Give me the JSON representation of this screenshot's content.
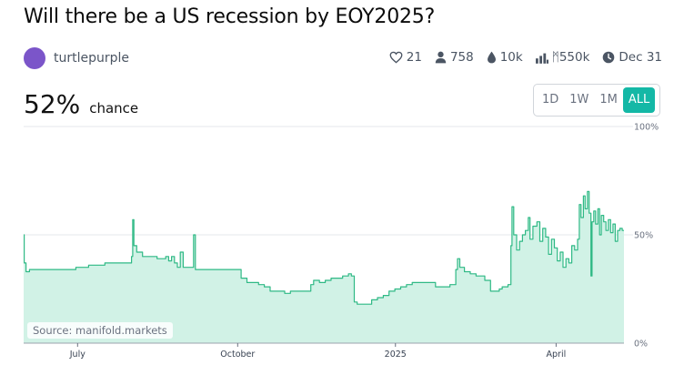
{
  "header": {
    "title": "Will there be a US recession by EOY2025?"
  },
  "creator": {
    "name": "turtlepurple"
  },
  "stats": {
    "likes": "21",
    "traders": "758",
    "liquidity": "10k",
    "volume": "ᛗ550k",
    "close_date": "Dec 31"
  },
  "probability": {
    "value": "52%",
    "label": "chance"
  },
  "range_buttons": [
    {
      "label": "1D",
      "active": false
    },
    {
      "label": "1W",
      "active": false
    },
    {
      "label": "1M",
      "active": false
    },
    {
      "label": "ALL",
      "active": true
    }
  ],
  "source": "Source: manifold.markets",
  "colors": {
    "line": "#2fb985",
    "fill": "#d1f2e6",
    "accent": "#14b8a6",
    "avatar": "#7b55c9"
  },
  "chart_data": {
    "type": "area",
    "x_ticks": [
      {
        "label": "July",
        "t": 0.093
      },
      {
        "label": "October",
        "t": 0.369
      },
      {
        "label": "2025",
        "t": 0.641
      },
      {
        "label": "April",
        "t": 0.918
      }
    ],
    "y_ticks": [
      "0%",
      "50%",
      "100%"
    ],
    "ylim": [
      0,
      100
    ],
    "series": [
      {
        "values": [
          [
            0.0,
            50
          ],
          [
            0.001,
            37
          ],
          [
            0.004,
            33
          ],
          [
            0.01,
            34
          ],
          [
            0.015,
            34
          ],
          [
            0.025,
            34
          ],
          [
            0.06,
            34
          ],
          [
            0.085,
            34
          ],
          [
            0.09,
            35
          ],
          [
            0.105,
            35
          ],
          [
            0.112,
            36
          ],
          [
            0.14,
            37
          ],
          [
            0.17,
            37
          ],
          [
            0.183,
            37
          ],
          [
            0.186,
            40
          ],
          [
            0.188,
            57
          ],
          [
            0.19,
            45
          ],
          [
            0.195,
            42
          ],
          [
            0.205,
            40
          ],
          [
            0.215,
            40
          ],
          [
            0.23,
            39
          ],
          [
            0.245,
            40
          ],
          [
            0.25,
            38
          ],
          [
            0.255,
            40
          ],
          [
            0.26,
            37
          ],
          [
            0.265,
            35
          ],
          [
            0.27,
            42
          ],
          [
            0.275,
            35
          ],
          [
            0.29,
            35
          ],
          [
            0.293,
            50
          ],
          [
            0.296,
            34
          ],
          [
            0.33,
            34
          ],
          [
            0.36,
            34
          ],
          [
            0.37,
            34
          ],
          [
            0.375,
            30
          ],
          [
            0.385,
            28
          ],
          [
            0.395,
            28
          ],
          [
            0.405,
            27
          ],
          [
            0.415,
            26
          ],
          [
            0.425,
            24
          ],
          [
            0.44,
            24
          ],
          [
            0.45,
            23
          ],
          [
            0.46,
            24
          ],
          [
            0.47,
            24
          ],
          [
            0.48,
            24
          ],
          [
            0.495,
            27
          ],
          [
            0.5,
            29
          ],
          [
            0.51,
            28
          ],
          [
            0.52,
            29
          ],
          [
            0.53,
            30
          ],
          [
            0.54,
            30
          ],
          [
            0.55,
            31
          ],
          [
            0.56,
            32
          ],
          [
            0.565,
            31
          ],
          [
            0.57,
            19
          ],
          [
            0.575,
            18
          ],
          [
            0.59,
            18
          ],
          [
            0.6,
            20
          ],
          [
            0.61,
            21
          ],
          [
            0.62,
            22
          ],
          [
            0.63,
            24
          ],
          [
            0.64,
            25
          ],
          [
            0.65,
            26
          ],
          [
            0.66,
            27
          ],
          [
            0.67,
            28
          ],
          [
            0.68,
            28
          ],
          [
            0.705,
            28
          ],
          [
            0.71,
            26
          ],
          [
            0.72,
            26
          ],
          [
            0.735,
            27
          ],
          [
            0.74,
            27
          ],
          [
            0.745,
            34
          ],
          [
            0.748,
            39
          ],
          [
            0.752,
            35
          ],
          [
            0.76,
            33
          ],
          [
            0.77,
            32
          ],
          [
            0.78,
            31
          ],
          [
            0.795,
            29
          ],
          [
            0.802,
            29
          ],
          [
            0.805,
            24
          ],
          [
            0.815,
            24
          ],
          [
            0.82,
            25
          ],
          [
            0.825,
            26
          ],
          [
            0.835,
            27
          ],
          [
            0.84,
            45
          ],
          [
            0.842,
            63
          ],
          [
            0.845,
            50
          ],
          [
            0.85,
            43
          ],
          [
            0.855,
            47
          ],
          [
            0.86,
            50
          ],
          [
            0.865,
            52
          ],
          [
            0.87,
            58
          ],
          [
            0.873,
            48
          ],
          [
            0.878,
            54
          ],
          [
            0.885,
            56
          ],
          [
            0.89,
            47
          ],
          [
            0.895,
            53
          ],
          [
            0.9,
            49
          ],
          [
            0.905,
            41
          ],
          [
            0.91,
            48
          ],
          [
            0.915,
            44
          ],
          [
            0.92,
            38
          ],
          [
            0.925,
            42
          ],
          [
            0.93,
            35
          ],
          [
            0.935,
            39
          ],
          [
            0.94,
            37
          ],
          [
            0.945,
            45
          ],
          [
            0.95,
            43
          ],
          [
            0.955,
            48
          ],
          [
            0.958,
            64
          ],
          [
            0.961,
            58
          ],
          [
            0.965,
            68
          ],
          [
            0.968,
            62
          ],
          [
            0.972,
            70
          ],
          [
            0.975,
            60
          ],
          [
            0.978,
            31
          ],
          [
            0.98,
            56
          ],
          [
            0.983,
            61
          ],
          [
            0.986,
            55
          ],
          [
            0.99,
            62
          ],
          [
            0.993,
            50
          ],
          [
            0.996,
            59
          ],
          [
            1.0,
            56
          ],
          [
            1.004,
            52
          ],
          [
            1.008,
            57
          ],
          [
            1.012,
            51
          ],
          [
            1.016,
            55
          ],
          [
            1.02,
            47
          ],
          [
            1.024,
            52
          ],
          [
            1.028,
            53
          ],
          [
            1.032,
            52
          ],
          [
            1.035,
            52
          ]
        ]
      }
    ]
  }
}
